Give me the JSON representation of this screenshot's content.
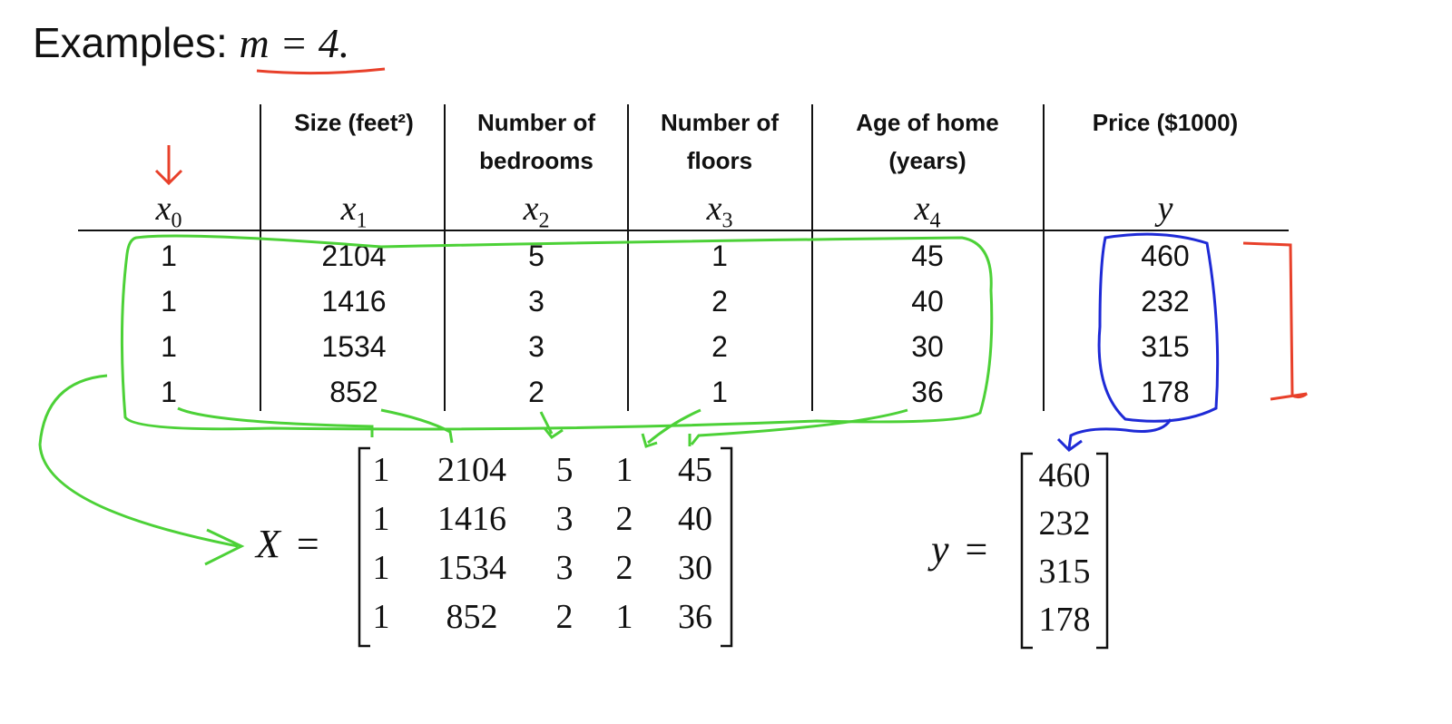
{
  "title": {
    "label": "Examples:",
    "math": "m = 4."
  },
  "table": {
    "headers": [
      {
        "lines": [],
        "var": "x",
        "sub": "0"
      },
      {
        "lines": [
          "Size (feet²)"
        ],
        "var": "x",
        "sub": "1"
      },
      {
        "lines": [
          "Number of",
          "bedrooms"
        ],
        "var": "x",
        "sub": "2"
      },
      {
        "lines": [
          "Number of",
          "floors"
        ],
        "var": "x",
        "sub": "3"
      },
      {
        "lines": [
          "Age of home",
          "(years)"
        ],
        "var": "x",
        "sub": "4"
      },
      {
        "lines": [
          "Price ($1000)"
        ],
        "var": "y",
        "sub": ""
      }
    ],
    "rows": [
      [
        "1",
        "2104",
        "5",
        "1",
        "45",
        "460"
      ],
      [
        "1",
        "1416",
        "3",
        "2",
        "40",
        "232"
      ],
      [
        "1",
        "1534",
        "3",
        "2",
        "30",
        "315"
      ],
      [
        "1",
        "852",
        "2",
        "1",
        "36",
        "178"
      ]
    ]
  },
  "matrix_X": {
    "label": "X",
    "eq": "=",
    "rows": [
      [
        "1",
        "2104",
        "5",
        "1",
        "45"
      ],
      [
        "1",
        "1416",
        "3",
        "2",
        "40"
      ],
      [
        "1",
        "1534",
        "3",
        "2",
        "30"
      ],
      [
        "1",
        "852",
        "2",
        "1",
        "36"
      ]
    ]
  },
  "vector_y": {
    "label": "y",
    "eq": "=",
    "values": [
      "460",
      "232",
      "315",
      "178"
    ]
  },
  "colors": {
    "ink": "#111111",
    "green": "#4cd137",
    "blue": "#1e2ad6",
    "red": "#e8402a"
  }
}
